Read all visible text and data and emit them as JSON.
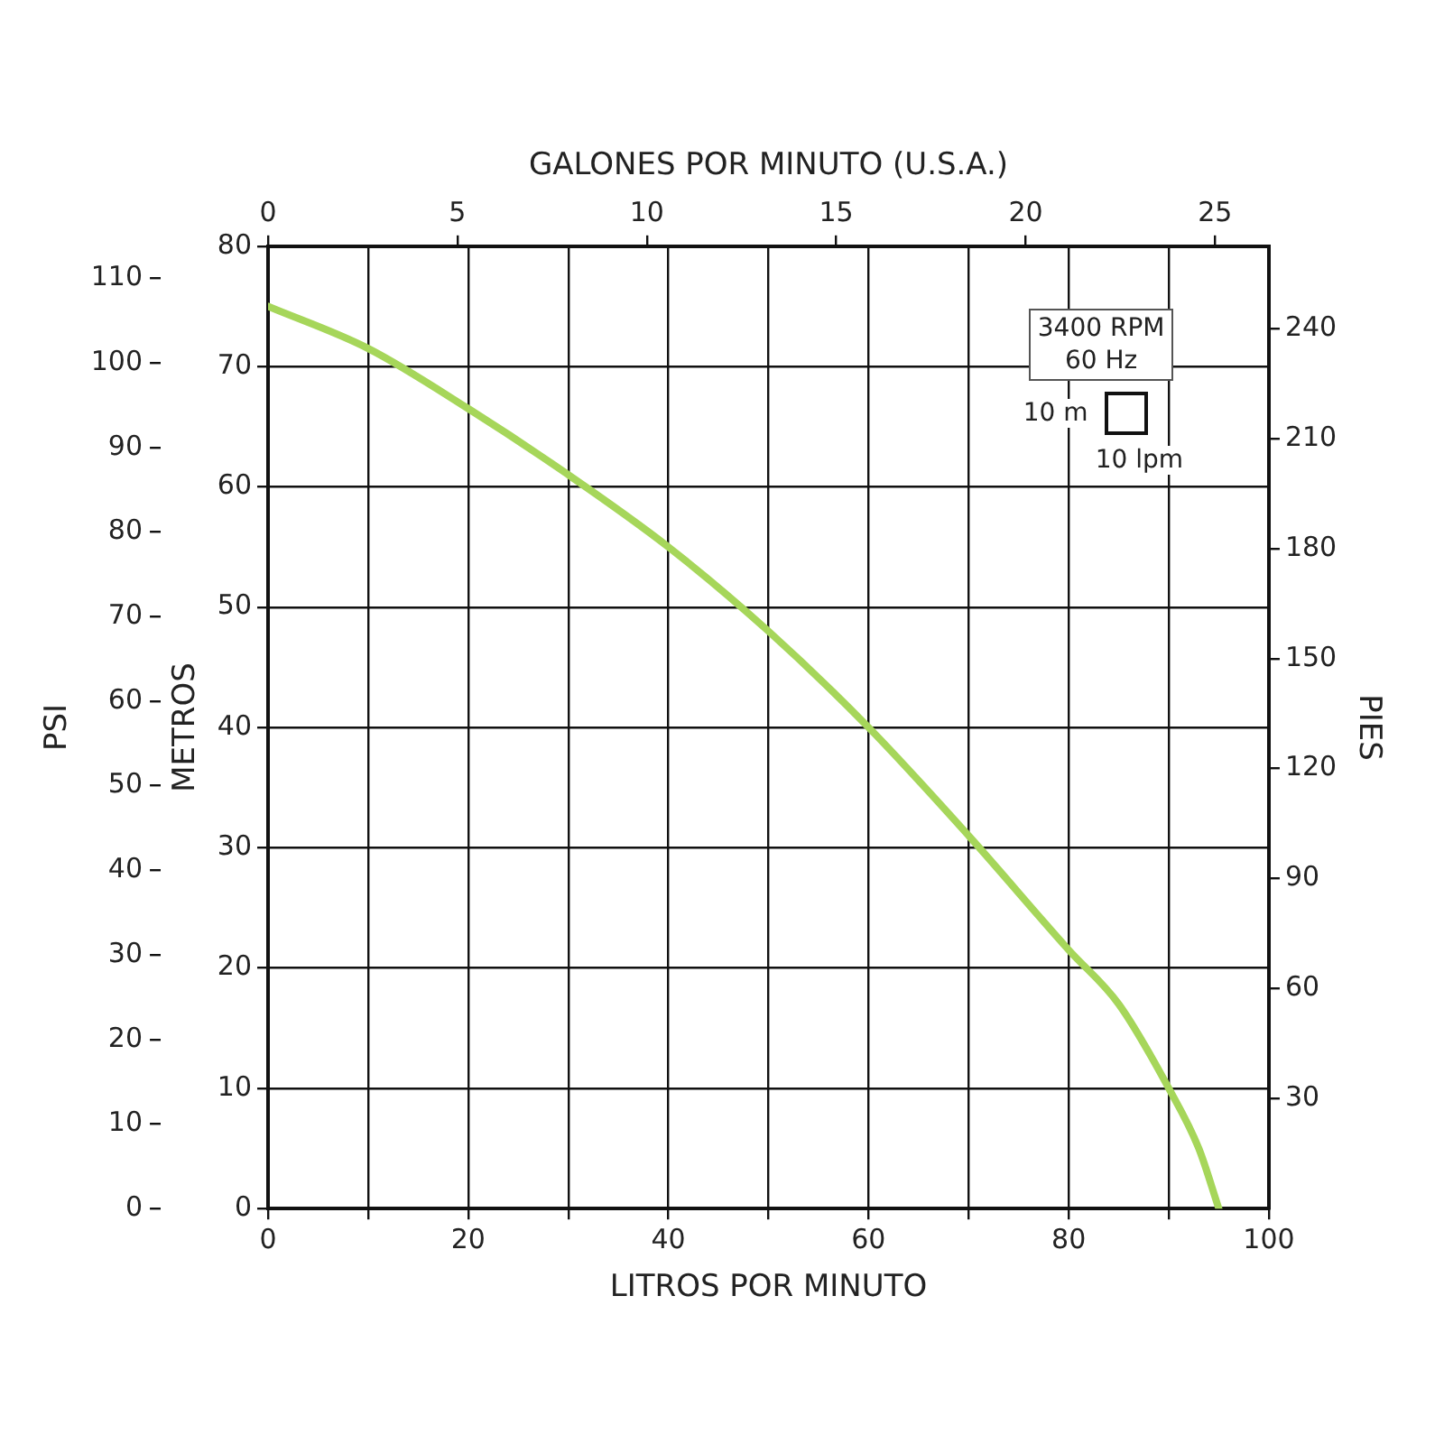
{
  "chart_data": {
    "type": "line",
    "xlabel": "LITROS POR MINUTO",
    "x2label": "GALONES POR MINUTO (U.S.A.)",
    "ylabel": "METROS",
    "y2label": "PIES",
    "y3label": "PSI",
    "x": [
      0,
      10,
      20,
      30,
      40,
      50,
      60,
      70,
      80,
      85,
      90,
      93,
      95
    ],
    "series": [
      {
        "color": "#a6d65a",
        "values": [
          75,
          71.5,
          66.5,
          61,
          55,
          48,
          40,
          31,
          21.5,
          17,
          10,
          5,
          0
        ]
      }
    ],
    "xlim": [
      0,
      100
    ],
    "xticks": [
      0,
      {
        "value": 10,
        "label": null
      },
      20,
      {
        "value": 30,
        "label": null
      },
      40,
      {
        "value": 50,
        "label": null
      },
      60,
      {
        "value": 70,
        "label": null
      },
      80,
      {
        "value": 90,
        "label": null
      },
      100
    ],
    "x2lim": [
      0,
      26.42
    ],
    "x2ticks": [
      0,
      5,
      10,
      15,
      20,
      25
    ],
    "ylim": [
      0,
      80
    ],
    "yticks": [
      0,
      10,
      20,
      30,
      40,
      50,
      60,
      70,
      80
    ],
    "y2lim": [
      0,
      262.47
    ],
    "y2ticks": [
      30,
      60,
      90,
      120,
      150,
      180,
      210,
      240
    ],
    "y3lim": [
      0,
      113.8
    ],
    "y3ticks": [
      0,
      10,
      20,
      30,
      40,
      50,
      60,
      70,
      80,
      90,
      100,
      110
    ],
    "annotations": [
      "3400 RPM",
      "60 Hz",
      "10 m",
      "10 lpm"
    ],
    "grid": true,
    "marker": "none",
    "line_style": "solid",
    "legend": false
  }
}
